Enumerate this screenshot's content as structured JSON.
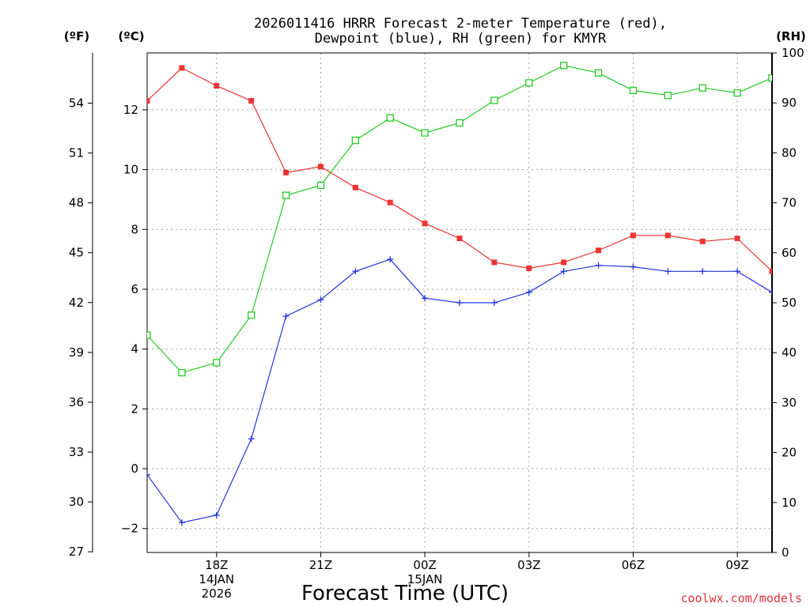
{
  "chart_data": {
    "type": "line",
    "title": [
      "2026011416 HRRR Forecast 2-meter Temperature (red),",
      "Dewpoint (blue), RH (green) for KMYR"
    ],
    "xlabel": "Forecast Time (UTC)",
    "credit": "coolwx.com/models",
    "axes": {
      "fahrenheit": {
        "label": "(ºF)",
        "ticks": [
          27,
          30,
          33,
          36,
          39,
          42,
          45,
          48,
          51,
          54
        ]
      },
      "celsius": {
        "label": "(ºC)",
        "ticks": [
          "−2",
          "0",
          "2",
          "4",
          "6",
          "8",
          "10",
          "12"
        ],
        "ylim": [
          -2.8,
          13.9
        ]
      },
      "rh": {
        "label": "(RH)",
        "ticks": [
          0,
          10,
          20,
          30,
          40,
          50,
          60,
          70,
          80,
          90,
          100
        ],
        "ylim": [
          0,
          100
        ]
      }
    },
    "x_hours": [
      16,
      17,
      18,
      19,
      20,
      21,
      22,
      23,
      24,
      25,
      26,
      27,
      28,
      29,
      30,
      31,
      32,
      33,
      34
    ],
    "x_range": [
      16,
      34
    ],
    "x_ticks": [
      {
        "hour": 18,
        "lines": [
          "18Z",
          "14JAN",
          "2026"
        ]
      },
      {
        "hour": 21,
        "lines": [
          "21Z"
        ]
      },
      {
        "hour": 24,
        "lines": [
          "00Z",
          "15JAN"
        ]
      },
      {
        "hour": 27,
        "lines": [
          "03Z"
        ]
      },
      {
        "hour": 30,
        "lines": [
          "06Z"
        ]
      },
      {
        "hour": 33,
        "lines": [
          "09Z"
        ]
      }
    ],
    "series": [
      {
        "name": "2-meter Temperature",
        "axis": "celsius",
        "color": "#ee3333",
        "marker": "filled-square",
        "values": [
          12.3,
          13.4,
          12.8,
          12.3,
          9.9,
          10.1,
          9.4,
          8.9,
          8.2,
          7.7,
          6.9,
          6.7,
          6.9,
          7.3,
          7.8,
          7.8,
          7.6,
          7.7,
          6.6
        ]
      },
      {
        "name": "Dewpoint",
        "axis": "celsius",
        "color": "#2233dd",
        "marker": "plus",
        "values": [
          -0.2,
          -1.8,
          -1.55,
          1.0,
          5.1,
          5.65,
          6.6,
          7.0,
          5.7,
          5.55,
          5.55,
          5.9,
          6.6,
          6.8,
          6.75,
          6.6,
          6.6,
          6.6,
          5.9
        ]
      },
      {
        "name": "RH",
        "axis": "rh",
        "color": "#22cc22",
        "marker": "open-square",
        "values": [
          43.5,
          36.0,
          38.0,
          47.5,
          71.5,
          73.5,
          82.5,
          87.0,
          84.0,
          86.0,
          90.5,
          94.0,
          97.5,
          96.0,
          92.5,
          91.5,
          93.0,
          92.0,
          95.0
        ]
      }
    ]
  }
}
